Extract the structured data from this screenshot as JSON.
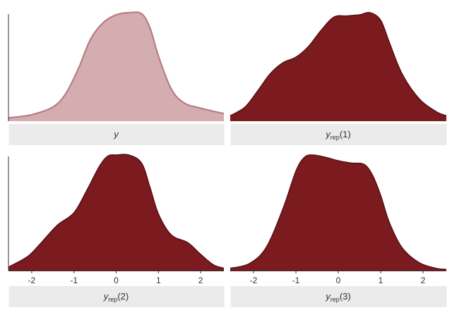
{
  "colors": {
    "observed_fill": "#d4adb0",
    "observed_line": "#b97c82",
    "replicate_fill": "#7b1a1f",
    "replicate_line": "#5a1114",
    "strip_bg": "#ebebeb",
    "axis": "#333333"
  },
  "chart_data": {
    "type": "area",
    "title": "",
    "xlabel": "",
    "ylabel": "",
    "xlim": [
      -2.55,
      2.55
    ],
    "x_ticks": [
      -2,
      -1,
      0,
      1,
      2
    ],
    "x_tick_labels": [
      "-2",
      "-1",
      "0",
      "1",
      "2"
    ],
    "grid": false,
    "legend": "none",
    "facets": [
      {
        "id": "y",
        "strip_label": {
          "base": "y",
          "sub": "",
          "arg": ""
        },
        "style": "observed",
        "x": [
          -2.55,
          -2.0,
          -1.5,
          -1.2,
          -0.9,
          -0.6,
          -0.3,
          0.0,
          0.3,
          0.6,
          0.8,
          1.0,
          1.3,
          1.6,
          2.0,
          2.55
        ],
        "density": [
          0.03,
          0.06,
          0.13,
          0.25,
          0.48,
          0.76,
          0.91,
          0.98,
          1.0,
          0.99,
          0.86,
          0.6,
          0.3,
          0.17,
          0.12,
          0.07
        ]
      },
      {
        "id": "yrep1",
        "strip_label": {
          "base": "y",
          "sub": "rep",
          "arg": "(1)"
        },
        "style": "replicate",
        "x": [
          -2.55,
          -2.2,
          -1.9,
          -1.6,
          -1.3,
          -1.0,
          -0.7,
          -0.4,
          -0.1,
          0.2,
          0.5,
          0.75,
          1.0,
          1.2,
          1.5,
          1.9,
          2.3,
          2.55
        ],
        "density": [
          0.05,
          0.13,
          0.28,
          0.44,
          0.54,
          0.59,
          0.69,
          0.84,
          0.96,
          0.97,
          0.98,
          1.0,
          0.93,
          0.73,
          0.44,
          0.21,
          0.09,
          0.05
        ]
      },
      {
        "id": "yrep2",
        "strip_label": {
          "base": "y",
          "sub": "rep",
          "arg": "(2)"
        },
        "style": "replicate",
        "x": [
          -2.55,
          -2.1,
          -1.8,
          -1.4,
          -1.0,
          -0.7,
          -0.4,
          -0.2,
          0.0,
          0.3,
          0.6,
          0.8,
          1.0,
          1.3,
          1.7,
          2.0,
          2.3,
          2.55
        ],
        "density": [
          0.03,
          0.12,
          0.23,
          0.39,
          0.5,
          0.69,
          0.9,
          0.99,
          1.0,
          1.0,
          0.93,
          0.72,
          0.49,
          0.31,
          0.24,
          0.14,
          0.05,
          0.02
        ]
      },
      {
        "id": "yrep3",
        "strip_label": {
          "base": "y",
          "sub": "rep",
          "arg": "(3)"
        },
        "style": "replicate",
        "x": [
          -2.55,
          -2.1,
          -1.7,
          -1.3,
          -1.0,
          -0.8,
          -0.6,
          -0.3,
          0.0,
          0.3,
          0.6,
          0.8,
          1.0,
          1.2,
          1.5,
          1.9,
          2.3,
          2.55
        ],
        "density": [
          0.02,
          0.06,
          0.2,
          0.54,
          0.86,
          0.98,
          1.0,
          0.98,
          0.95,
          0.93,
          0.92,
          0.83,
          0.65,
          0.42,
          0.2,
          0.07,
          0.02,
          0.01
        ]
      }
    ]
  }
}
